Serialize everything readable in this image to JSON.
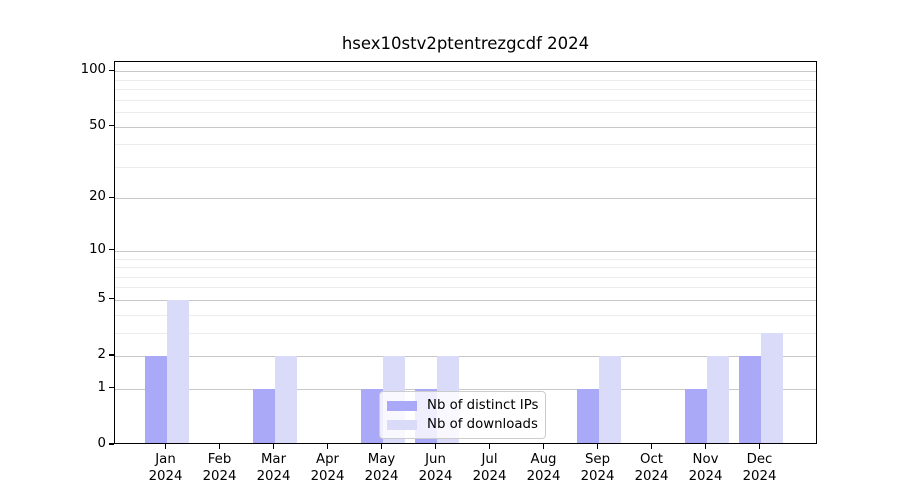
{
  "title": "hsex10stv2ptentrezgcdf 2024",
  "chart_data": {
    "type": "bar",
    "categories": [
      "Jan",
      "Feb",
      "Mar",
      "Apr",
      "May",
      "Jun",
      "Jul",
      "Aug",
      "Sep",
      "Oct",
      "Nov",
      "Dec"
    ],
    "year": "2024",
    "series": [
      {
        "name": "Nb of distinct IPs",
        "color": "#a9a9f7",
        "values": [
          2,
          0,
          1,
          0,
          1,
          1,
          0,
          0,
          1,
          0,
          1,
          2
        ]
      },
      {
        "name": "Nb of downloads",
        "color": "#dadaf9",
        "values": [
          5,
          0,
          2,
          0,
          2,
          2,
          0,
          0,
          2,
          0,
          2,
          3
        ]
      }
    ],
    "title": "hsex10stv2ptentrezgcdf 2024",
    "xlabel": "",
    "ylabel": "",
    "yscale": "log1p",
    "ylim": [
      0,
      112
    ],
    "yticks": [
      0,
      1,
      2,
      5,
      10,
      20,
      50,
      100
    ],
    "minor_gridlines": [
      3,
      4,
      6,
      7,
      8,
      9,
      30,
      40,
      60,
      70,
      80,
      90
    ],
    "grid": true,
    "legend_position": "lower center-left, inside plot",
    "colors": {
      "major_grid": "#c8c8c8",
      "minor_grid": "#ececec",
      "axis": "#000000",
      "background": "#ffffff"
    }
  }
}
